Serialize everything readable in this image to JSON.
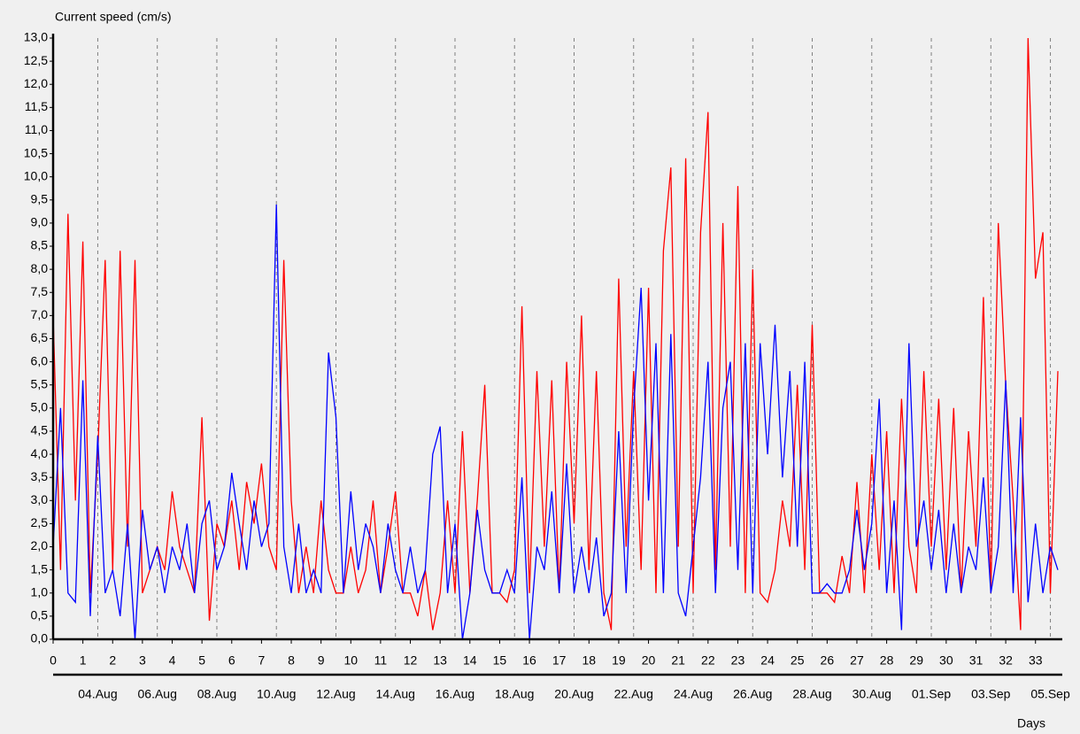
{
  "chart_data": {
    "type": "line",
    "title": "Current speed (cm/s)",
    "x_label": "Days",
    "x": [
      0,
      0.25,
      0.5,
      0.75,
      1,
      1.25,
      1.5,
      1.75,
      2,
      2.25,
      2.5,
      2.75,
      3,
      3.25,
      3.5,
      3.75,
      4,
      4.25,
      4.5,
      4.75,
      5,
      5.25,
      5.5,
      5.75,
      6,
      6.25,
      6.5,
      6.75,
      7,
      7.25,
      7.5,
      7.75,
      8,
      8.25,
      8.5,
      8.75,
      9,
      9.25,
      9.5,
      9.75,
      10,
      10.25,
      10.5,
      10.75,
      11,
      11.25,
      11.5,
      11.75,
      12,
      12.25,
      12.5,
      12.75,
      13,
      13.25,
      13.5,
      13.75,
      14,
      14.25,
      14.5,
      14.75,
      15,
      15.25,
      15.5,
      15.75,
      16,
      16.25,
      16.5,
      16.75,
      17,
      17.25,
      17.5,
      17.75,
      18,
      18.25,
      18.5,
      18.75,
      19,
      19.25,
      19.5,
      19.75,
      20,
      20.25,
      20.5,
      20.75,
      21,
      21.25,
      21.5,
      21.75,
      22,
      22.25,
      22.5,
      22.75,
      23,
      23.25,
      23.5,
      23.75,
      24,
      24.25,
      24.5,
      24.75,
      25,
      25.25,
      25.5,
      25.75,
      26,
      26.25,
      26.5,
      26.75,
      27,
      27.25,
      27.5,
      27.75,
      28,
      28.25,
      28.5,
      28.75,
      29,
      29.25,
      29.5,
      29.75,
      30,
      30.25,
      30.5,
      30.75,
      31,
      31.25,
      31.5,
      31.75,
      32,
      32.25,
      32.5,
      32.75,
      33,
      33.25,
      33.5,
      33.75
    ],
    "series": [
      {
        "color": "#ff0000",
        "values": [
          7.0,
          1.5,
          9.2,
          3.0,
          8.6,
          1.0,
          4.0,
          8.2,
          1.5,
          8.4,
          2.0,
          8.2,
          1.0,
          1.5,
          2.0,
          1.5,
          3.2,
          2.0,
          1.5,
          1.0,
          4.8,
          0.4,
          2.5,
          2.0,
          3.0,
          1.5,
          3.4,
          2.5,
          3.8,
          2.0,
          1.5,
          8.2,
          3.0,
          1.0,
          2.0,
          1.0,
          3.0,
          1.5,
          1.0,
          1.0,
          2.0,
          1.0,
          1.5,
          3.0,
          1.0,
          2.0,
          3.2,
          1.0,
          1.0,
          0.5,
          1.5,
          0.2,
          1.0,
          3.0,
          1.0,
          4.5,
          1.0,
          3.0,
          5.5,
          1.0,
          1.0,
          0.8,
          1.5,
          7.2,
          1.0,
          5.8,
          2.0,
          5.6,
          1.0,
          6.0,
          2.5,
          7.0,
          1.5,
          5.8,
          1.0,
          0.2,
          7.8,
          2.0,
          5.8,
          1.5,
          7.6,
          1.0,
          8.4,
          10.2,
          2.0,
          10.4,
          1.0,
          8.8,
          11.4,
          1.5,
          9.0,
          2.0,
          9.8,
          1.0,
          8.0,
          1.0,
          0.8,
          1.5,
          3.0,
          2.0,
          5.5,
          1.5,
          6.8,
          1.0,
          1.0,
          0.8,
          1.8,
          1.0,
          3.4,
          1.0,
          4.0,
          1.5,
          4.5,
          1.0,
          5.2,
          2.0,
          1.0,
          5.8,
          2.0,
          5.2,
          1.5,
          5.0,
          1.0,
          4.5,
          2.0,
          7.4,
          1.0,
          9.0,
          5.5,
          3.0,
          0.2,
          13.0,
          7.8,
          8.8,
          1.0,
          5.8
        ]
      },
      {
        "color": "#0000ff",
        "values": [
          2.0,
          5.0,
          1.0,
          0.8,
          5.6,
          0.5,
          4.4,
          1.0,
          1.5,
          0.5,
          2.5,
          0.0,
          2.8,
          1.5,
          2.0,
          1.0,
          2.0,
          1.5,
          2.5,
          1.0,
          2.5,
          3.0,
          1.5,
          2.0,
          3.6,
          2.5,
          1.5,
          3.0,
          2.0,
          2.5,
          9.4,
          2.0,
          1.0,
          2.5,
          1.0,
          1.5,
          1.0,
          6.2,
          4.8,
          1.0,
          3.2,
          1.5,
          2.5,
          2.0,
          1.0,
          2.5,
          1.5,
          1.0,
          2.0,
          1.0,
          1.5,
          4.0,
          4.6,
          1.0,
          2.5,
          0.0,
          1.0,
          2.8,
          1.5,
          1.0,
          1.0,
          1.5,
          1.0,
          3.5,
          0.0,
          2.0,
          1.5,
          3.2,
          1.0,
          3.8,
          1.0,
          2.0,
          1.0,
          2.2,
          0.5,
          1.0,
          4.5,
          1.0,
          5.0,
          7.6,
          3.0,
          6.4,
          1.0,
          6.6,
          1.0,
          0.5,
          2.0,
          3.5,
          6.0,
          1.0,
          5.0,
          6.0,
          1.5,
          6.4,
          1.0,
          6.4,
          4.0,
          6.8,
          3.5,
          5.8,
          2.0,
          6.0,
          1.0,
          1.0,
          1.2,
          1.0,
          1.0,
          1.5,
          2.8,
          1.5,
          2.5,
          5.2,
          1.0,
          3.0,
          0.2,
          6.4,
          2.0,
          3.0,
          1.5,
          2.8,
          1.0,
          2.5,
          1.0,
          2.0,
          1.5,
          3.5,
          1.0,
          2.0,
          5.6,
          1.0,
          4.8,
          0.8,
          2.5,
          1.0,
          2.0,
          1.5
        ]
      }
    ],
    "xlim": [
      0,
      33.9
    ],
    "xticks": [
      0,
      1,
      2,
      3,
      4,
      5,
      6,
      7,
      8,
      9,
      10,
      11,
      12,
      13,
      14,
      15,
      16,
      17,
      18,
      19,
      20,
      21,
      22,
      23,
      24,
      25,
      26,
      27,
      28,
      29,
      30,
      31,
      32,
      33
    ],
    "date_ticks": [
      {
        "value": 1.5,
        "label": "04.Aug"
      },
      {
        "value": 3.5,
        "label": "06.Aug"
      },
      {
        "value": 5.5,
        "label": "08.Aug"
      },
      {
        "value": 7.5,
        "label": "10.Aug"
      },
      {
        "value": 9.5,
        "label": "12.Aug"
      },
      {
        "value": 11.5,
        "label": "14.Aug"
      },
      {
        "value": 13.5,
        "label": "16.Aug"
      },
      {
        "value": 15.5,
        "label": "18.Aug"
      },
      {
        "value": 17.5,
        "label": "20.Aug"
      },
      {
        "value": 19.5,
        "label": "22.Aug"
      },
      {
        "value": 21.5,
        "label": "24.Aug"
      },
      {
        "value": 23.5,
        "label": "26.Aug"
      },
      {
        "value": 25.5,
        "label": "28.Aug"
      },
      {
        "value": 27.5,
        "label": "30.Aug"
      },
      {
        "value": 29.5,
        "label": "01.Sep"
      },
      {
        "value": 31.5,
        "label": "03.Sep"
      },
      {
        "value": 33.5,
        "label": "05.Sep"
      }
    ],
    "ylim": [
      0,
      13
    ],
    "yticks": [
      {
        "value": 0,
        "label": "0,0"
      },
      {
        "value": 0.5,
        "label": "0,5"
      },
      {
        "value": 1,
        "label": "1,0"
      },
      {
        "value": 1.5,
        "label": "1,5"
      },
      {
        "value": 2,
        "label": "2,0"
      },
      {
        "value": 2.5,
        "label": "2,5"
      },
      {
        "value": 3,
        "label": "3,0"
      },
      {
        "value": 3.5,
        "label": "3,5"
      },
      {
        "value": 4,
        "label": "4,0"
      },
      {
        "value": 4.5,
        "label": "4,5"
      },
      {
        "value": 5,
        "label": "5,0"
      },
      {
        "value": 5.5,
        "label": "5,5"
      },
      {
        "value": 6,
        "label": "6,0"
      },
      {
        "value": 6.5,
        "label": "6,5"
      },
      {
        "value": 7,
        "label": "7,0"
      },
      {
        "value": 7.5,
        "label": "7,5"
      },
      {
        "value": 8,
        "label": "8,0"
      },
      {
        "value": 8.5,
        "label": "8,5"
      },
      {
        "value": 9,
        "label": "9,0"
      },
      {
        "value": 9.5,
        "label": "9,5"
      },
      {
        "value": 10,
        "label": "10,0"
      },
      {
        "value": 10.5,
        "label": "10,5"
      },
      {
        "value": 11,
        "label": "11,0"
      },
      {
        "value": 11.5,
        "label": "11,5"
      },
      {
        "value": 12,
        "label": "12,0"
      },
      {
        "value": 12.5,
        "label": "12,5"
      },
      {
        "value": 13,
        "label": "13,0"
      }
    ],
    "grid": true
  }
}
